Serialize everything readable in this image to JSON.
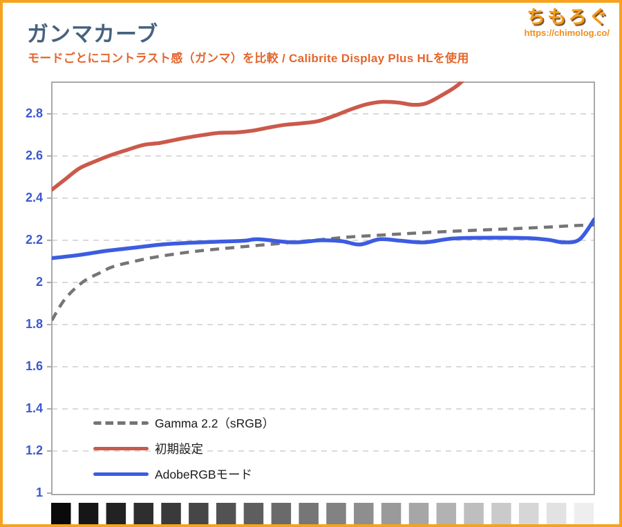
{
  "header": {
    "title": "ガンマカーブ",
    "subtitle": "モードごとにコントラスト感（ガンマ）を比較 / Calibrite Display Plus HLを使用",
    "logo_text": "ちもろぐ",
    "logo_url": "https://chimolog.co/"
  },
  "colors": {
    "frame_border": "#f6a21e",
    "title_text": "#47627f",
    "subtitle_text": "#e4662d",
    "logo_orange": "#f59d1a",
    "axis_label_blue": "#3c58cf",
    "gridline": "#cdcdcd",
    "plot_border": "#a9a9a9",
    "tick": "#aaaaaa"
  },
  "chart_data": {
    "type": "line",
    "title": "ガンマカーブ",
    "xlabel": "",
    "ylabel": "",
    "ylim": [
      1,
      2.95
    ],
    "yticks": [
      2.8,
      2.6,
      2.4,
      2.2,
      2,
      1.8,
      1.6,
      1.4,
      1.2,
      1
    ],
    "ytick_labels": [
      "2.8",
      "2.6",
      "2.4",
      "2.2",
      "2",
      "1.8",
      "1.6",
      "1.4",
      "1.2",
      "1"
    ],
    "grid": "horizontal dashed lines at each y tick",
    "legend_position": "inside bottom-left",
    "x_axis_note": "x axis shown as 20 grayscale patches from black to white",
    "series": [
      {
        "name": "Gamma 2.2（sRGB）",
        "color": "#757575",
        "style": "dashed",
        "points": [
          [
            0,
            1.82
          ],
          [
            0.024,
            1.92
          ],
          [
            0.056,
            2.0
          ],
          [
            0.088,
            2.045
          ],
          [
            0.113,
            2.075
          ],
          [
            0.152,
            2.1
          ],
          [
            0.19,
            2.12
          ],
          [
            0.241,
            2.14
          ],
          [
            0.292,
            2.155
          ],
          [
            0.355,
            2.17
          ],
          [
            0.419,
            2.185
          ],
          [
            0.483,
            2.2
          ],
          [
            0.546,
            2.215
          ],
          [
            0.623,
            2.227
          ],
          [
            0.699,
            2.238
          ],
          [
            0.776,
            2.247
          ],
          [
            0.852,
            2.255
          ],
          [
            0.916,
            2.263
          ],
          [
            0.967,
            2.27
          ],
          [
            1.0,
            2.273
          ]
        ],
        "clipped_top": false
      },
      {
        "name": "初期設定",
        "color": "#cb5a4b",
        "style": "solid",
        "points": [
          [
            0,
            2.44
          ],
          [
            0.025,
            2.49
          ],
          [
            0.05,
            2.54
          ],
          [
            0.08,
            2.575
          ],
          [
            0.11,
            2.605
          ],
          [
            0.14,
            2.63
          ],
          [
            0.17,
            2.653
          ],
          [
            0.2,
            2.662
          ],
          [
            0.24,
            2.683
          ],
          [
            0.28,
            2.7
          ],
          [
            0.31,
            2.71
          ],
          [
            0.34,
            2.712
          ],
          [
            0.37,
            2.72
          ],
          [
            0.4,
            2.735
          ],
          [
            0.43,
            2.748
          ],
          [
            0.46,
            2.755
          ],
          [
            0.49,
            2.765
          ],
          [
            0.52,
            2.79
          ],
          [
            0.55,
            2.82
          ],
          [
            0.58,
            2.845
          ],
          [
            0.61,
            2.857
          ],
          [
            0.64,
            2.853
          ],
          [
            0.665,
            2.843
          ],
          [
            0.69,
            2.85
          ],
          [
            0.72,
            2.89
          ],
          [
            0.75,
            2.94
          ],
          [
            0.78,
            3.02
          ]
        ],
        "clipped_top": true
      },
      {
        "name": "AdobeRGBモード",
        "color": "#3c5ce0",
        "style": "solid",
        "points": [
          [
            0,
            2.115
          ],
          [
            0.05,
            2.13
          ],
          [
            0.101,
            2.15
          ],
          [
            0.152,
            2.165
          ],
          [
            0.203,
            2.18
          ],
          [
            0.254,
            2.188
          ],
          [
            0.304,
            2.193
          ],
          [
            0.355,
            2.198
          ],
          [
            0.381,
            2.205
          ],
          [
            0.445,
            2.19
          ],
          [
            0.496,
            2.2
          ],
          [
            0.534,
            2.196
          ],
          [
            0.568,
            2.18
          ],
          [
            0.604,
            2.205
          ],
          [
            0.642,
            2.198
          ],
          [
            0.687,
            2.19
          ],
          [
            0.738,
            2.208
          ],
          [
            0.801,
            2.212
          ],
          [
            0.878,
            2.21
          ],
          [
            0.916,
            2.202
          ],
          [
            0.944,
            2.19
          ],
          [
            0.973,
            2.205
          ],
          [
            1.0,
            2.3
          ]
        ],
        "clipped_top": false
      }
    ],
    "x_patches": [
      "#0a0a0a",
      "#161616",
      "#222222",
      "#2e2e2e",
      "#3a3a3a",
      "#464646",
      "#525252",
      "#5e5e5e",
      "#6a6a6a",
      "#767676",
      "#828282",
      "#8e8e8e",
      "#9a9a9a",
      "#a6a6a6",
      "#b2b2b2",
      "#bebebe",
      "#cacaca",
      "#d6d6d6",
      "#e2e2e2",
      "#eeeeee"
    ]
  }
}
